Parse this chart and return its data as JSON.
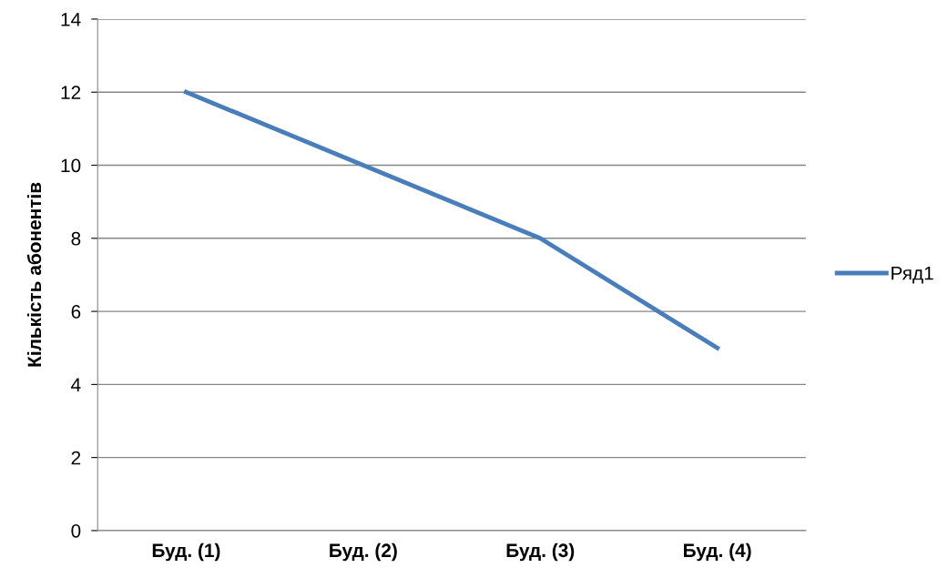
{
  "chart_data": {
    "type": "line",
    "ylabel": "Кількість абонентів",
    "categories": [
      "Буд. (1)",
      "Буд. (2)",
      "Буд. (3)",
      "Буд. (4)"
    ],
    "series": [
      {
        "name": "Ряд1",
        "color": "#4a7ebb",
        "values": [
          12,
          10,
          8,
          5
        ]
      }
    ],
    "ylim": [
      0,
      14
    ],
    "yticks": [
      0,
      2,
      4,
      6,
      8,
      10,
      12,
      14
    ],
    "grid": "y",
    "legend": "right",
    "marker": "none",
    "line_style": "solid"
  }
}
